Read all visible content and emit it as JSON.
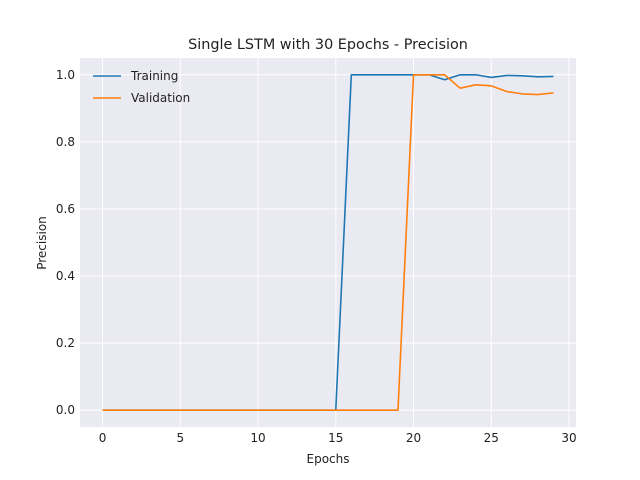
{
  "chart_data": {
    "type": "line",
    "title": "Single LSTM with 30 Epochs - Precision",
    "xlabel": "Epochs",
    "ylabel": "Precision",
    "xlim": [
      -1.45,
      30.45
    ],
    "ylim": [
      -0.05,
      1.05
    ],
    "xticks": [
      "0",
      "5",
      "10",
      "15",
      "20",
      "25",
      "30"
    ],
    "yticks": [
      "0.0",
      "0.2",
      "0.4",
      "0.6",
      "0.8",
      "1.0"
    ],
    "grid": true,
    "legend_position": "top-left",
    "x": [
      0,
      1,
      2,
      3,
      4,
      5,
      6,
      7,
      8,
      9,
      10,
      11,
      12,
      13,
      14,
      15,
      16,
      17,
      18,
      19,
      20,
      21,
      22,
      23,
      24,
      25,
      26,
      27,
      28,
      29
    ],
    "series": [
      {
        "name": "Training",
        "color": "#1f77b4",
        "values": [
          0,
          0,
          0,
          0,
          0,
          0,
          0,
          0,
          0,
          0,
          0,
          0,
          0,
          0,
          0,
          0,
          1,
          1,
          1,
          1,
          1,
          1,
          0.985,
          1,
          1,
          0.992,
          0.998,
          0.997,
          0.994,
          0.995
        ]
      },
      {
        "name": "Validation",
        "color": "#ff7f0e",
        "values": [
          0,
          0,
          0,
          0,
          0,
          0,
          0,
          0,
          0,
          0,
          0,
          0,
          0,
          0,
          0,
          0,
          0,
          0,
          0,
          0,
          1,
          1,
          1,
          0.96,
          0.97,
          0.967,
          0.95,
          0.943,
          0.941,
          0.946
        ]
      }
    ]
  }
}
